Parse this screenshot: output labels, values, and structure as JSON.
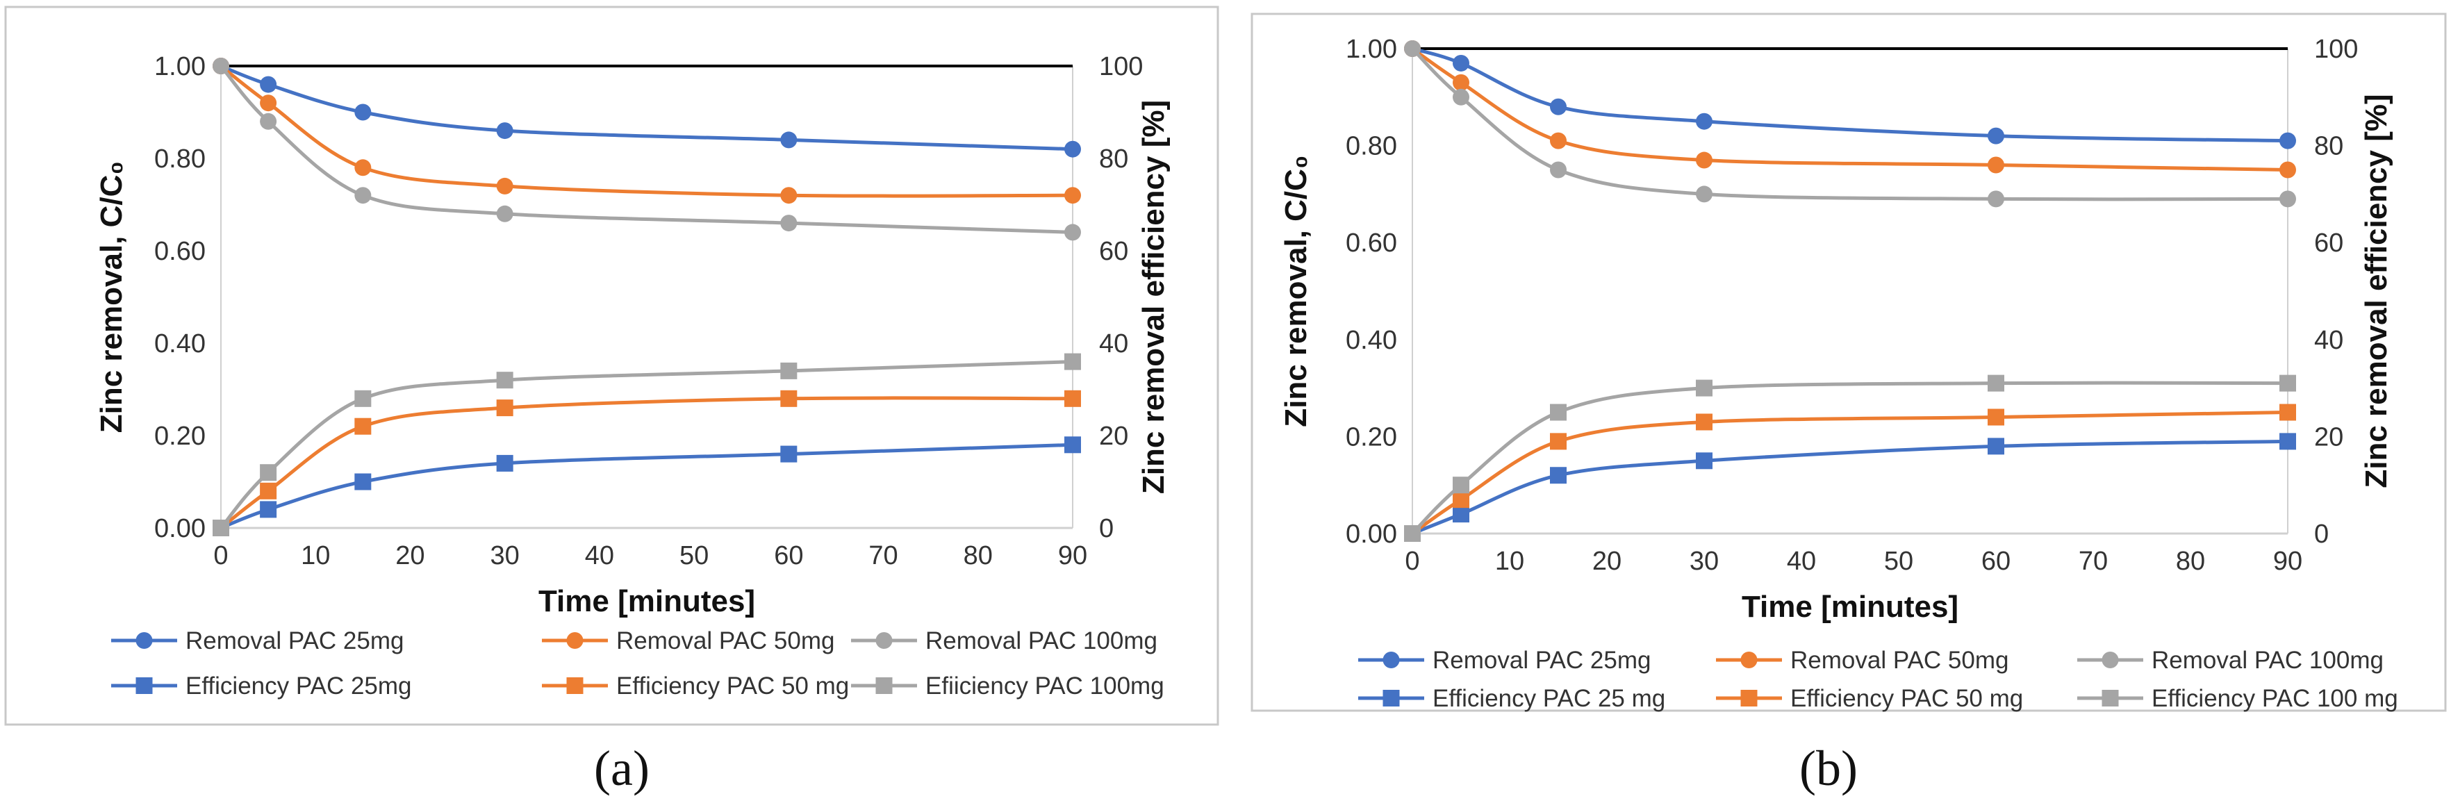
{
  "figure": {
    "panel_labels": [
      "(a)",
      "(b)"
    ]
  },
  "chart_data": [
    {
      "type": "line",
      "panel": "a",
      "xlabel": "Time [minutes]",
      "ylabel": "Zinc removal, C/C₀",
      "y2label": "Zinc removal efficiency [%]",
      "xlim": [
        0,
        90
      ],
      "ylim": [
        0,
        1
      ],
      "y2lim": [
        0,
        100
      ],
      "x_ticks": [
        "0",
        "10",
        "20",
        "30",
        "40",
        "50",
        "60",
        "70",
        "80",
        "90"
      ],
      "y_ticks": [
        "0.00",
        "0.20",
        "0.40",
        "0.60",
        "0.80",
        "1.00"
      ],
      "y2_ticks": [
        "0",
        "20",
        "40",
        "60",
        "80",
        "100"
      ],
      "reference_line": {
        "y": 1.0,
        "color": "#000000"
      },
      "x": [
        0,
        5,
        15,
        30,
        60,
        90
      ],
      "legend_position": "bottom",
      "series": [
        {
          "name": "Removal PAC 25mg",
          "axis": "left",
          "marker": "circle",
          "color": "#4472C4",
          "values": [
            1.0,
            0.96,
            0.9,
            0.86,
            0.84,
            0.82
          ]
        },
        {
          "name": "Removal PAC 50mg",
          "axis": "left",
          "marker": "circle",
          "color": "#ED7D31",
          "values": [
            1.0,
            0.92,
            0.78,
            0.74,
            0.72,
            0.72
          ]
        },
        {
          "name": "Removal PAC 100mg",
          "axis": "left",
          "marker": "circle",
          "color": "#A5A5A5",
          "values": [
            1.0,
            0.88,
            0.72,
            0.68,
            0.66,
            0.64
          ]
        },
        {
          "name": "Efficiency PAC 25mg",
          "axis": "right",
          "marker": "square",
          "color": "#4472C4",
          "values": [
            0,
            4,
            10,
            14,
            16,
            18
          ]
        },
        {
          "name": "Efficiency PAC 50 mg",
          "axis": "right",
          "marker": "square",
          "color": "#ED7D31",
          "values": [
            0,
            8,
            22,
            26,
            28,
            28
          ]
        },
        {
          "name": "Efiiciency PAC 100mg",
          "axis": "right",
          "marker": "square",
          "color": "#A5A5A5",
          "values": [
            0,
            12,
            28,
            32,
            34,
            36
          ]
        }
      ]
    },
    {
      "type": "line",
      "panel": "b",
      "xlabel": "Time [minutes]",
      "ylabel": "Zinc removal, C/C₀",
      "y2label": "Zinc removal efficiency [%]",
      "xlim": [
        0,
        90
      ],
      "ylim": [
        0,
        1
      ],
      "y2lim": [
        0,
        100
      ],
      "x_ticks": [
        "0",
        "10",
        "20",
        "30",
        "40",
        "50",
        "60",
        "70",
        "80",
        "90"
      ],
      "y_ticks": [
        "0.00",
        "0.20",
        "0.40",
        "0.60",
        "0.80",
        "1.00"
      ],
      "y2_ticks": [
        "0",
        "20",
        "40",
        "60",
        "80",
        "100"
      ],
      "reference_line": {
        "y": 1.0,
        "color": "#000000"
      },
      "x": [
        0,
        5,
        15,
        30,
        60,
        90
      ],
      "legend_position": "bottom",
      "series": [
        {
          "name": "Removal PAC 25mg",
          "axis": "left",
          "marker": "circle",
          "color": "#4472C4",
          "values": [
            1.0,
            0.97,
            0.88,
            0.85,
            0.82,
            0.81
          ]
        },
        {
          "name": "Removal PAC 50mg",
          "axis": "left",
          "marker": "circle",
          "color": "#ED7D31",
          "values": [
            1.0,
            0.93,
            0.81,
            0.77,
            0.76,
            0.75
          ]
        },
        {
          "name": "Removal PAC 100mg",
          "axis": "left",
          "marker": "circle",
          "color": "#A5A5A5",
          "values": [
            1.0,
            0.9,
            0.75,
            0.7,
            0.69,
            0.69
          ]
        },
        {
          "name": "Efficiency PAC 25 mg",
          "axis": "right",
          "marker": "square",
          "color": "#4472C4",
          "values": [
            0,
            4,
            12,
            15,
            18,
            19
          ]
        },
        {
          "name": "Efficiency PAC 50 mg",
          "axis": "right",
          "marker": "square",
          "color": "#ED7D31",
          "values": [
            0,
            7,
            19,
            23,
            24,
            25
          ]
        },
        {
          "name": "Efficiency PAC 100 mg",
          "axis": "right",
          "marker": "square",
          "color": "#A5A5A5",
          "values": [
            0,
            10,
            25,
            30,
            31,
            31
          ]
        }
      ]
    }
  ]
}
